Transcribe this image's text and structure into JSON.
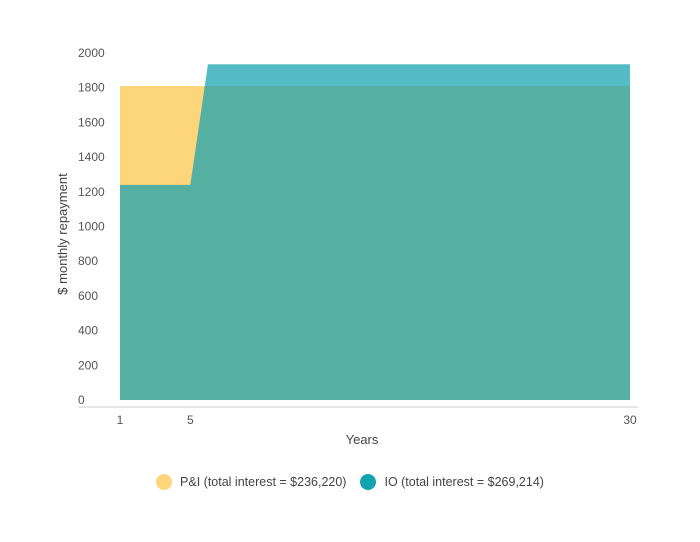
{
  "chart_data": {
    "type": "area",
    "xlabel": "Years",
    "ylabel": "$ monthly repayment",
    "xlim": [
      1,
      30
    ],
    "ylim": [
      0,
      2000
    ],
    "x_ticks": [
      "1",
      "5",
      "30"
    ],
    "y_ticks": [
      "0",
      "200",
      "400",
      "600",
      "800",
      "1000",
      "1200",
      "1400",
      "1600",
      "1800",
      "2000"
    ],
    "legend_position": "bottom",
    "series": [
      {
        "name": "P&I (total interest = $236,220)",
        "color": "#FDD57A",
        "x": [
          1,
          30
        ],
        "values": [
          1810,
          1810
        ]
      },
      {
        "name": "IO (total interest = $269,214)",
        "color": "#13A2B0",
        "x": [
          1,
          5,
          6,
          30
        ],
        "values": [
          1240,
          1240,
          1935,
          1935
        ]
      }
    ]
  }
}
